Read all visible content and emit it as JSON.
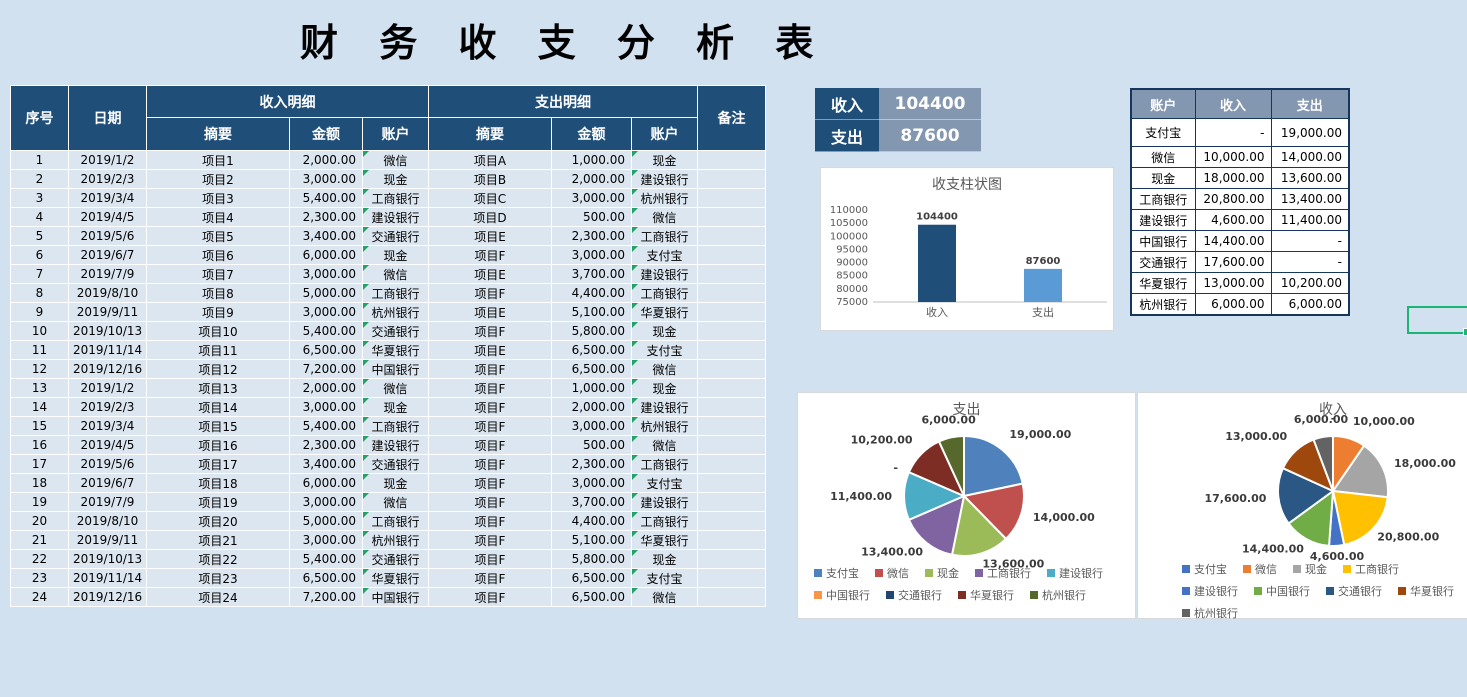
{
  "page": {
    "title": "财 务 收 支 分 析 表"
  },
  "main_table": {
    "headers": {
      "no": "序号",
      "date": "日期",
      "income_group": "收入明细",
      "expense_group": "支出明细",
      "summary": "摘要",
      "amount": "金额",
      "account": "账户",
      "remark": "备注"
    },
    "rows": [
      [
        "1",
        "2019/1/2",
        "项目1",
        "2,000.00",
        "微信",
        "项目A",
        "1,000.00",
        "现金",
        ""
      ],
      [
        "2",
        "2019/2/3",
        "项目2",
        "3,000.00",
        "现金",
        "项目B",
        "2,000.00",
        "建设银行",
        ""
      ],
      [
        "3",
        "2019/3/4",
        "项目3",
        "5,400.00",
        "工商银行",
        "项目C",
        "3,000.00",
        "杭州银行",
        ""
      ],
      [
        "4",
        "2019/4/5",
        "项目4",
        "2,300.00",
        "建设银行",
        "项目D",
        "500.00",
        "微信",
        ""
      ],
      [
        "5",
        "2019/5/6",
        "项目5",
        "3,400.00",
        "交通银行",
        "项目E",
        "2,300.00",
        "工商银行",
        ""
      ],
      [
        "6",
        "2019/6/7",
        "项目6",
        "6,000.00",
        "现金",
        "项目F",
        "3,000.00",
        "支付宝",
        ""
      ],
      [
        "7",
        "2019/7/9",
        "项目7",
        "3,000.00",
        "微信",
        "项目E",
        "3,700.00",
        "建设银行",
        ""
      ],
      [
        "8",
        "2019/8/10",
        "项目8",
        "5,000.00",
        "工商银行",
        "项目F",
        "4,400.00",
        "工商银行",
        ""
      ],
      [
        "9",
        "2019/9/11",
        "项目9",
        "3,000.00",
        "杭州银行",
        "项目E",
        "5,100.00",
        "华夏银行",
        ""
      ],
      [
        "10",
        "2019/10/13",
        "项目10",
        "5,400.00",
        "交通银行",
        "项目F",
        "5,800.00",
        "现金",
        ""
      ],
      [
        "11",
        "2019/11/14",
        "项目11",
        "6,500.00",
        "华夏银行",
        "项目E",
        "6,500.00",
        "支付宝",
        ""
      ],
      [
        "12",
        "2019/12/16",
        "项目12",
        "7,200.00",
        "中国银行",
        "项目F",
        "6,500.00",
        "微信",
        ""
      ],
      [
        "13",
        "2019/1/2",
        "项目13",
        "2,000.00",
        "微信",
        "项目F",
        "1,000.00",
        "现金",
        ""
      ],
      [
        "14",
        "2019/2/3",
        "项目14",
        "3,000.00",
        "现金",
        "项目F",
        "2,000.00",
        "建设银行",
        ""
      ],
      [
        "15",
        "2019/3/4",
        "项目15",
        "5,400.00",
        "工商银行",
        "项目F",
        "3,000.00",
        "杭州银行",
        ""
      ],
      [
        "16",
        "2019/4/5",
        "项目16",
        "2,300.00",
        "建设银行",
        "项目F",
        "500.00",
        "微信",
        ""
      ],
      [
        "17",
        "2019/5/6",
        "项目17",
        "3,400.00",
        "交通银行",
        "项目F",
        "2,300.00",
        "工商银行",
        ""
      ],
      [
        "18",
        "2019/6/7",
        "项目18",
        "6,000.00",
        "现金",
        "项目F",
        "3,000.00",
        "支付宝",
        ""
      ],
      [
        "19",
        "2019/7/9",
        "项目19",
        "3,000.00",
        "微信",
        "项目F",
        "3,700.00",
        "建设银行",
        ""
      ],
      [
        "20",
        "2019/8/10",
        "项目20",
        "5,000.00",
        "工商银行",
        "项目F",
        "4,400.00",
        "工商银行",
        ""
      ],
      [
        "21",
        "2019/9/11",
        "项目21",
        "3,000.00",
        "杭州银行",
        "项目F",
        "5,100.00",
        "华夏银行",
        ""
      ],
      [
        "22",
        "2019/10/13",
        "项目22",
        "5,400.00",
        "交通银行",
        "项目F",
        "5,800.00",
        "现金",
        ""
      ],
      [
        "23",
        "2019/11/14",
        "项目23",
        "6,500.00",
        "华夏银行",
        "项目F",
        "6,500.00",
        "支付宝",
        ""
      ],
      [
        "24",
        "2019/12/16",
        "项目24",
        "7,200.00",
        "中国银行",
        "项目F",
        "6,500.00",
        "微信",
        ""
      ]
    ]
  },
  "summary_box": {
    "income_label": "收入",
    "income_value": "104400",
    "expense_label": "支出",
    "expense_value": "87600"
  },
  "account_table": {
    "headers": [
      "账户",
      "收入",
      "支出"
    ],
    "rows": [
      [
        "支付宝",
        "-",
        "19,000.00"
      ],
      [
        "微信",
        "10,000.00",
        "14,000.00"
      ],
      [
        "现金",
        "18,000.00",
        "13,600.00"
      ],
      [
        "工商银行",
        "20,800.00",
        "13,400.00"
      ],
      [
        "建设银行",
        "4,600.00",
        "11,400.00"
      ],
      [
        "中国银行",
        "14,400.00",
        "-"
      ],
      [
        "交通银行",
        "17,600.00",
        "-"
      ],
      [
        "华夏银行",
        "13,000.00",
        "10,200.00"
      ],
      [
        "杭州银行",
        "6,000.00",
        "6,000.00"
      ]
    ]
  },
  "chart_data": [
    {
      "type": "bar",
      "title": "收支柱状图",
      "categories": [
        "收入",
        "支出"
      ],
      "values": [
        104400,
        87600
      ],
      "data_labels": [
        "104400",
        "87600"
      ],
      "colors": [
        "#1F4E79",
        "#5B9BD5"
      ],
      "ylim": [
        75000,
        110000
      ],
      "ytick_step": 5000,
      "grid": false,
      "legend": "none"
    },
    {
      "type": "pie",
      "title": "支出",
      "categories": [
        "支付宝",
        "微信",
        "现金",
        "工商银行",
        "建设银行",
        "中国银行",
        "交通银行",
        "华夏银行",
        "杭州银行"
      ],
      "values": [
        19000,
        14000,
        13600,
        13400,
        11400,
        0,
        0,
        10200,
        6000
      ],
      "labels": [
        "19,000.00",
        "14,000.00",
        "13,600.00",
        "13,400.00",
        "11,400.00",
        "-",
        "-",
        "10,200.00",
        "6,000.00"
      ],
      "colors": [
        "#4F81BD",
        "#C0504D",
        "#9BBB59",
        "#8064A2",
        "#4BACC6",
        "#F79646",
        "#24456E",
        "#7E2D25",
        "#56682B"
      ],
      "legend": "bottom"
    },
    {
      "type": "pie",
      "title": "收入",
      "categories": [
        "支付宝",
        "微信",
        "现金",
        "工商银行",
        "建设银行",
        "中国银行",
        "交通银行",
        "华夏银行",
        "杭州银行"
      ],
      "values": [
        0,
        10000,
        18000,
        20800,
        4600,
        14400,
        17600,
        13000,
        6000
      ],
      "labels": [
        "-",
        "10,000.00",
        "18,000.00",
        "20,800.00",
        "4,600.00",
        "14,400.00",
        "17,600.00",
        "13,000.00",
        "6,000.00"
      ],
      "colors": [
        "#4472C4",
        "#ED7D31",
        "#A5A5A5",
        "#FFC000",
        "#4472C4",
        "#70AD47",
        "#2A5783",
        "#9E480E",
        "#636363"
      ],
      "legend": "bottom"
    }
  ],
  "colors": {
    "page_bg": "#D2E1F0",
    "table_header_bg": "#1F4E79",
    "table_body_bg": "#DCE6F1",
    "summary_value_bg": "#8497B0",
    "account_header_bg": "#8497B0",
    "account_border": "#17365D",
    "selection_green": "#1DB573",
    "flag_green": "#21A366"
  }
}
